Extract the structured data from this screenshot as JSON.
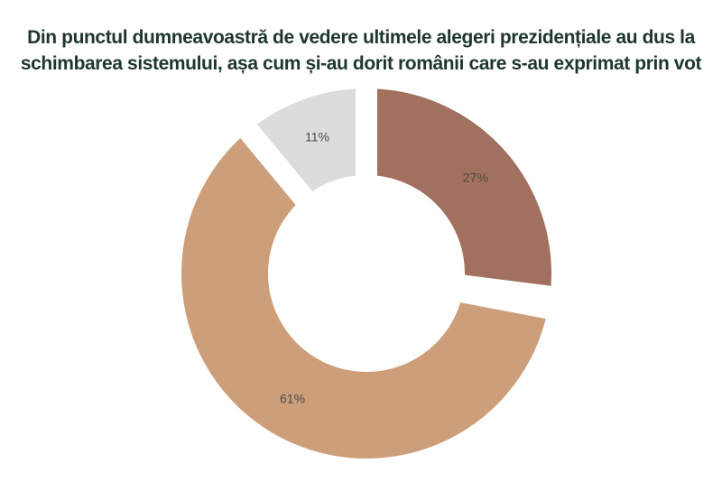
{
  "title": {
    "text": "Din punctul dumneavoastră de vedere ultimele alegeri prezidențiale au dus la schimbarea sistemului, așa cum și-au dorit românii care s-au exprimat prin vot",
    "lines": [
      "Din punctul dumneavoastră de vedere ultimele alegeri prezidențiale au dus la",
      "schimbarea sistemului, așa cum și-au dorit românii care s-au exprimat prin vot"
    ],
    "color": "#1f3630"
  },
  "chart_data": {
    "type": "pie",
    "subtype": "donut",
    "title": "Din punctul dumneavoastră de vedere ultimele alegeri prezidențiale au dus la schimbarea sistemului, așa cum și-au dorit românii care s-au exprimat prin vot",
    "start_angle": "top",
    "direction": "clockwise",
    "legend": "none",
    "grid": false,
    "label_color": "#4b4b46",
    "background": "#ffffff",
    "slices": [
      {
        "label": "27%",
        "value": 27,
        "color": "#a1705e",
        "start_deg": 0,
        "end_deg": 97.2
      },
      {
        "label": "61%",
        "value": 61,
        "color": "#cd9e7a",
        "start_deg": 100.8,
        "end_deg": 320.4
      },
      {
        "label": "11%",
        "value": 11,
        "color": "#dcdcdc",
        "start_deg": 320.4,
        "end_deg": 360
      }
    ]
  }
}
